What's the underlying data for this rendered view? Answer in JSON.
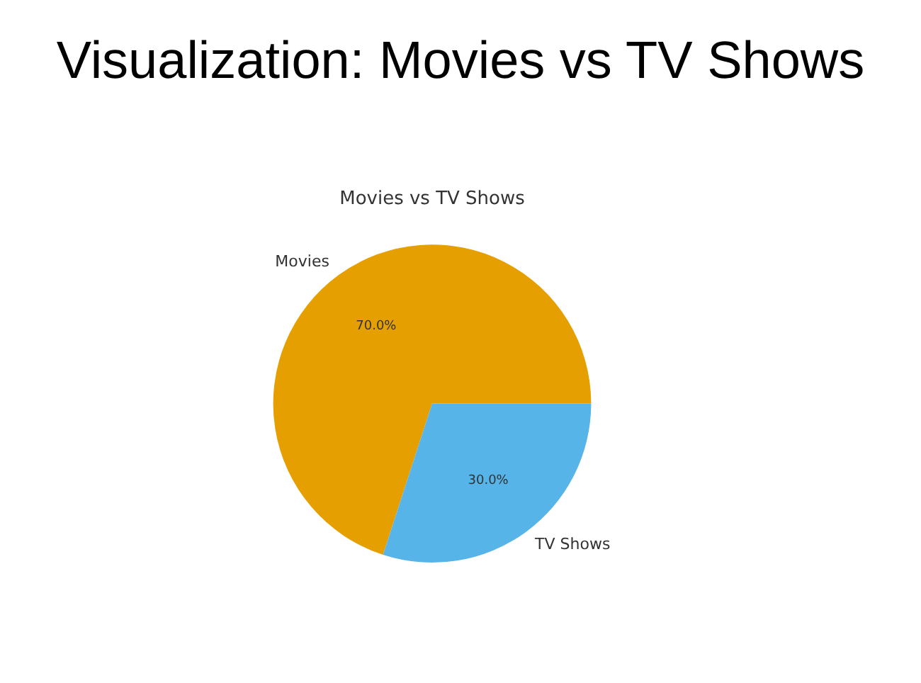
{
  "chart_data": {
    "type": "pie",
    "title": "Visualization: Movies vs TV Shows",
    "subtitle": "Movies vs TV Shows",
    "categories": [
      "Movies",
      "TV Shows"
    ],
    "values": [
      70,
      30
    ],
    "colors": [
      "#e69f00",
      "#56b4e9"
    ],
    "value_labels": [
      "70.0%",
      "30.0%"
    ],
    "legend": false
  }
}
